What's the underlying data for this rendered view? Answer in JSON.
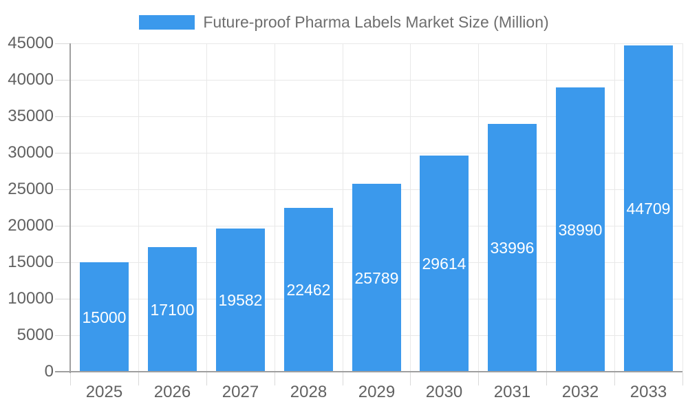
{
  "legend": {
    "label": "Future-proof Pharma Labels Market Size (Million)"
  },
  "chart_data": {
    "type": "bar",
    "title": "Future-proof Pharma Labels Market Size (Million)",
    "categories": [
      "2025",
      "2026",
      "2027",
      "2028",
      "2029",
      "2030",
      "2031",
      "2032",
      "2033"
    ],
    "values": [
      15000,
      17100,
      19582,
      22462,
      25789,
      29614,
      33996,
      38990,
      44709
    ],
    "xlabel": "",
    "ylabel": "",
    "ylim": [
      0,
      45000
    ],
    "ytick_step": 5000,
    "grid": true,
    "legend_position": "top",
    "bar_color": "#3b99ec",
    "value_label_color": "#ffffff",
    "show_value_labels": true,
    "value_label_placement": "center-of-bar"
  },
  "style": {
    "background": "#ffffff",
    "grid_color": "#e8e8e8",
    "tick_color": "#d9d9d9",
    "axis_color": "#9f9f9f",
    "axis_label_color": "#616161",
    "title_color": "#6e6e6e"
  }
}
